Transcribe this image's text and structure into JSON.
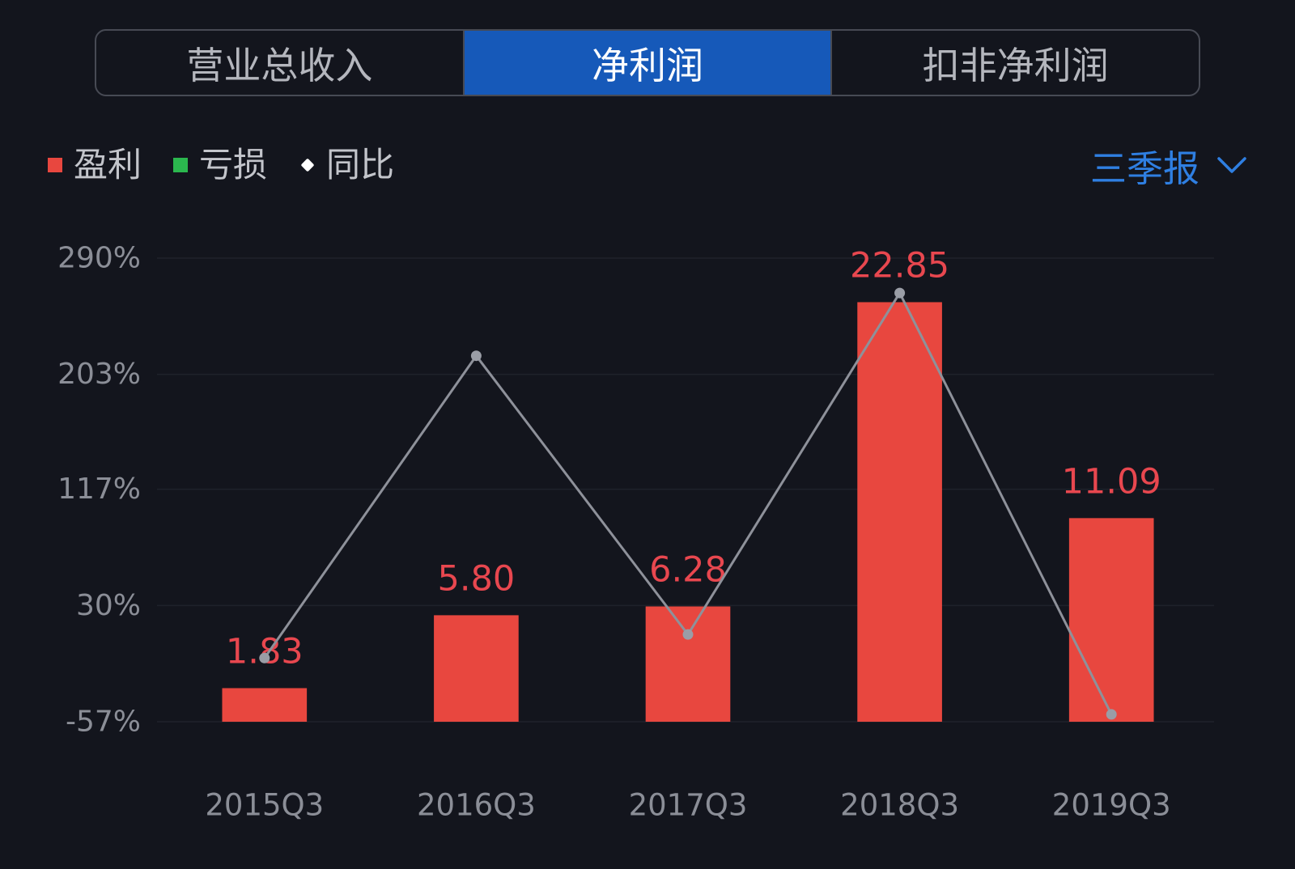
{
  "tabs": [
    {
      "label": "营业总收入",
      "selected": false
    },
    {
      "label": "净利润",
      "selected": true
    },
    {
      "label": "扣非净利润",
      "selected": false
    }
  ],
  "legend": [
    {
      "label": "盈利",
      "icon": "square",
      "color": "#e8473f"
    },
    {
      "label": "亏损",
      "icon": "square",
      "color": "#2bb74e"
    },
    {
      "label": "同比",
      "icon": "diamond",
      "color": "#ffffff"
    }
  ],
  "period_selector": {
    "label": "三季报",
    "icon": "chevron-down-icon",
    "color": "#2f7fe2"
  },
  "colors": {
    "background": "#13151d",
    "tab_active": "#1659b9",
    "axis_text": "#8b8e97",
    "grid": "#1f222b",
    "bar_label": "#e8474f",
    "point": "#9a9da6"
  },
  "chart_data": {
    "type": "bar",
    "categories": [
      "2015Q3",
      "2016Q3",
      "2017Q3",
      "2018Q3",
      "2019Q3"
    ],
    "series": [
      {
        "name": "盈利",
        "type": "bar",
        "color": "#e8473f",
        "values": [
          1.83,
          5.8,
          6.28,
          22.85,
          11.09
        ],
        "labels": [
          "1.83",
          "5.80",
          "6.28",
          "22.85",
          "11.09"
        ]
      },
      {
        "name": "同比",
        "type": "line",
        "color": "#8e919a",
        "values": [
          -9.3,
          216.9,
          8.3,
          263.9,
          -51.5
        ]
      }
    ],
    "yticks": [
      {
        "value": 290,
        "label": "290%"
      },
      {
        "value": 203,
        "label": "203%"
      },
      {
        "value": 117,
        "label": "117%"
      },
      {
        "value": 30,
        "label": "30%"
      },
      {
        "value": -57,
        "label": "-57%"
      }
    ],
    "ylim": [
      -57,
      290
    ],
    "bar_ylim": [
      0,
      25.25
    ],
    "grid": true,
    "legend_position": "top-left"
  }
}
